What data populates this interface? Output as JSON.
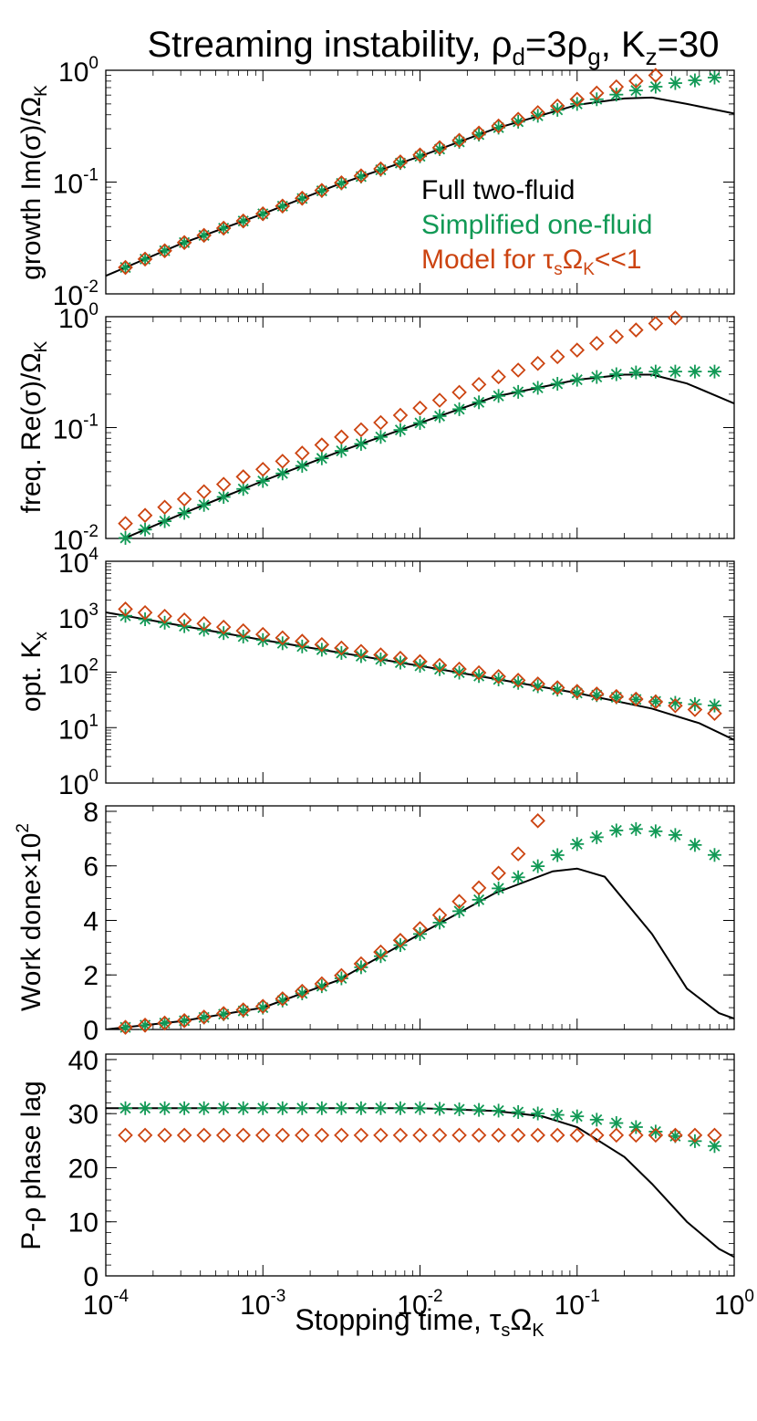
{
  "figure": {
    "title": "Streaming instability, ρd=3ρg, Kz=30",
    "title_parts": {
      "main": "Streaming instability, ",
      "rho": "ρ",
      "d_sub": "d",
      "eq3": "=3",
      "g_sub": "g",
      "kz": ", K",
      "z_sub": "z",
      "eq30": "=30"
    },
    "xlabel": "Stopping time, τsΩK",
    "xlabel_parts": {
      "main": "Stopping time, ",
      "tau": "τ",
      "s_sub": "s",
      "omega": "Ω",
      "k_sub": "K"
    },
    "x_ticks": [
      {
        "base": "10",
        "exp": "-4"
      },
      {
        "base": "10",
        "exp": "-3"
      },
      {
        "base": "10",
        "exp": "-2"
      },
      {
        "base": "10",
        "exp": "-1"
      },
      {
        "base": "10",
        "exp": "0"
      },
      {
        "base": "10",
        "exp": ""
      }
    ],
    "legend": {
      "placement": "inside top panel, lower right",
      "items": [
        {
          "label": "Full two-fluid",
          "color": "#000000"
        },
        {
          "label": "Simplified one-fluid",
          "color": "#119955"
        },
        {
          "label": "Model for τsΩK<<1",
          "color": "#cc4411",
          "parts": {
            "a": "Model for ",
            "tau": "τ",
            "s": "s",
            "om": "Ω",
            "k": "K",
            "b": "<<1"
          }
        }
      ]
    },
    "colors": {
      "full": "#000000",
      "simplified": "#119955",
      "model": "#cc4411"
    }
  },
  "chart_data": [
    {
      "type": "line",
      "ylabel": "growth Im(σ)/ΩK",
      "ylabel_parts": {
        "main": "growth Im(σ)/Ω",
        "sub": "K"
      },
      "xscale": "log",
      "yscale": "log",
      "xlim": [
        0.0001,
        1
      ],
      "ylim": [
        0.01,
        1
      ],
      "y_ticks": [
        {
          "base": "10",
          "exp": "0"
        },
        {
          "base": "10",
          "exp": "-1"
        },
        {
          "base": "10",
          "exp": "-2"
        }
      ],
      "series": [
        {
          "name": "Full two-fluid",
          "style": "line",
          "points": [
            [
              0.0001,
              0.0145
            ],
            [
              0.0003,
              0.028
            ],
            [
              0.001,
              0.052
            ],
            [
              0.003,
              0.095
            ],
            [
              0.01,
              0.17
            ],
            [
              0.03,
              0.3
            ],
            [
              0.1,
              0.49
            ],
            [
              0.2,
              0.56
            ],
            [
              0.3,
              0.57
            ],
            [
              0.5,
              0.5
            ],
            [
              1.0,
              0.41
            ]
          ]
        },
        {
          "name": "Simplified one-fluid",
          "style": "asterisk",
          "points": [
            [
              0.0001,
              0.0145
            ],
            [
              0.0003,
              0.028
            ],
            [
              0.001,
              0.052
            ],
            [
              0.003,
              0.095
            ],
            [
              0.01,
              0.17
            ],
            [
              0.03,
              0.3
            ],
            [
              0.1,
              0.5
            ],
            [
              0.2,
              0.63
            ],
            [
              0.4,
              0.76
            ],
            [
              0.75,
              0.86
            ]
          ]
        },
        {
          "name": "Model for τsΩK<<1",
          "style": "diamond",
          "points": [
            [
              0.0001,
              0.0145
            ],
            [
              0.0003,
              0.028
            ],
            [
              0.001,
              0.052
            ],
            [
              0.003,
              0.096
            ],
            [
              0.01,
              0.175
            ],
            [
              0.03,
              0.31
            ],
            [
              0.1,
              0.55
            ],
            [
              0.2,
              0.75
            ],
            [
              0.3,
              0.88
            ],
            [
              0.4,
              1.0
            ]
          ]
        }
      ]
    },
    {
      "type": "line",
      "ylabel": "freq. Re(σ)/ΩK",
      "ylabel_parts": {
        "main": "freq. Re(σ)/Ω",
        "sub": "K"
      },
      "xscale": "log",
      "yscale": "log",
      "xlim": [
        0.0001,
        1
      ],
      "ylim": [
        0.01,
        1
      ],
      "y_ticks": [
        {
          "base": "10",
          "exp": "0"
        },
        {
          "base": "10",
          "exp": "-1"
        },
        {
          "base": "10",
          "exp": "-2"
        }
      ],
      "series": [
        {
          "name": "Full two-fluid",
          "style": "line",
          "points": [
            [
              0.0001,
              0.0085
            ],
            [
              0.0003,
              0.0165
            ],
            [
              0.001,
              0.033
            ],
            [
              0.003,
              0.06
            ],
            [
              0.01,
              0.11
            ],
            [
              0.03,
              0.19
            ],
            [
              0.1,
              0.27
            ],
            [
              0.2,
              0.3
            ],
            [
              0.3,
              0.3
            ],
            [
              0.5,
              0.25
            ],
            [
              1.0,
              0.165
            ]
          ]
        },
        {
          "name": "Simplified one-fluid",
          "style": "asterisk",
          "points": [
            [
              0.0001,
              0.0085
            ],
            [
              0.0003,
              0.0165
            ],
            [
              0.001,
              0.033
            ],
            [
              0.003,
              0.06
            ],
            [
              0.01,
              0.11
            ],
            [
              0.03,
              0.19
            ],
            [
              0.1,
              0.27
            ],
            [
              0.2,
              0.31
            ],
            [
              0.3,
              0.32
            ],
            [
              0.75,
              0.32
            ]
          ]
        },
        {
          "name": "Model for τsΩK<<1",
          "style": "diamond",
          "points": [
            [
              0.0001,
              0.0115
            ],
            [
              0.0003,
              0.022
            ],
            [
              0.001,
              0.042
            ],
            [
              0.003,
              0.08
            ],
            [
              0.01,
              0.15
            ],
            [
              0.03,
              0.28
            ],
            [
              0.1,
              0.5
            ],
            [
              0.3,
              0.85
            ],
            [
              0.45,
              1.0
            ]
          ]
        }
      ]
    },
    {
      "type": "line",
      "ylabel": "opt. Kx",
      "ylabel_parts": {
        "main": "opt. K",
        "sub": "x"
      },
      "xscale": "log",
      "yscale": "log",
      "xlim": [
        0.0001,
        1
      ],
      "ylim": [
        1,
        10000
      ],
      "y_ticks": [
        {
          "base": "10",
          "exp": "4"
        },
        {
          "base": "10",
          "exp": "3"
        },
        {
          "base": "10",
          "exp": "2"
        },
        {
          "base": "10",
          "exp": "1"
        },
        {
          "base": "10",
          "exp": "0"
        }
      ],
      "series": [
        {
          "name": "Full two-fluid",
          "style": "line",
          "points": [
            [
              0.0001,
              1200
            ],
            [
              0.001,
              380
            ],
            [
              0.01,
              130
            ],
            [
              0.1,
              42
            ],
            [
              0.3,
              22
            ],
            [
              0.6,
              12
            ],
            [
              1.0,
              6
            ]
          ]
        },
        {
          "name": "Simplified one-fluid",
          "style": "asterisk",
          "points": [
            [
              0.0001,
              1200
            ],
            [
              0.001,
              380
            ],
            [
              0.01,
              130
            ],
            [
              0.1,
              42
            ],
            [
              0.3,
              30
            ],
            [
              0.75,
              25
            ]
          ]
        },
        {
          "name": "Model for τsΩK<<1",
          "style": "diamond",
          "points": [
            [
              0.0001,
              1600
            ],
            [
              0.001,
              480
            ],
            [
              0.01,
              155
            ],
            [
              0.1,
              45
            ],
            [
              0.3,
              30
            ],
            [
              0.75,
              18
            ]
          ]
        }
      ]
    },
    {
      "type": "line",
      "ylabel": "Work done×10²",
      "ylabel_parts": {
        "main": "Work done×10",
        "sup": "2"
      },
      "xscale": "log",
      "yscale": "linear",
      "xlim": [
        0.0001,
        1
      ],
      "ylim": [
        0,
        8.2
      ],
      "y_ticks": [
        {
          "base": "8",
          "exp": ""
        },
        {
          "base": "6",
          "exp": ""
        },
        {
          "base": "4",
          "exp": ""
        },
        {
          "base": "2",
          "exp": ""
        },
        {
          "base": "0",
          "exp": ""
        }
      ],
      "y_tick_values": [
        8,
        6,
        4,
        2,
        0
      ],
      "series": [
        {
          "name": "Full two-fluid",
          "style": "line",
          "points": [
            [
              0.0001,
              0.0
            ],
            [
              0.0003,
              0.3
            ],
            [
              0.001,
              0.8
            ],
            [
              0.003,
              1.8
            ],
            [
              0.01,
              3.5
            ],
            [
              0.03,
              5.0
            ],
            [
              0.07,
              5.8
            ],
            [
              0.1,
              5.9
            ],
            [
              0.15,
              5.6
            ],
            [
              0.3,
              3.5
            ],
            [
              0.5,
              1.5
            ],
            [
              0.8,
              0.6
            ],
            [
              1.0,
              0.4
            ]
          ]
        },
        {
          "name": "Simplified one-fluid",
          "style": "asterisk",
          "points": [
            [
              0.0001,
              0.0
            ],
            [
              0.0003,
              0.3
            ],
            [
              0.001,
              0.8
            ],
            [
              0.003,
              1.8
            ],
            [
              0.01,
              3.5
            ],
            [
              0.03,
              5.1
            ],
            [
              0.1,
              6.8
            ],
            [
              0.2,
              7.4
            ],
            [
              0.4,
              7.2
            ],
            [
              0.75,
              6.4
            ]
          ]
        },
        {
          "name": "Model for τsΩK<<1",
          "style": "diamond",
          "points": [
            [
              0.0001,
              0.0
            ],
            [
              0.0003,
              0.3
            ],
            [
              0.001,
              0.85
            ],
            [
              0.003,
              1.9
            ],
            [
              0.01,
              3.7
            ],
            [
              0.03,
              5.6
            ],
            [
              0.045,
              6.6
            ],
            [
              0.058,
              7.8
            ]
          ]
        }
      ]
    },
    {
      "type": "line",
      "ylabel": "P-ρ phase lag",
      "ylabel_parts": {
        "main": "P-ρ phase lag"
      },
      "xscale": "log",
      "yscale": "linear",
      "xlim": [
        0.0001,
        1
      ],
      "ylim": [
        0,
        41
      ],
      "y_ticks": [
        {
          "base": "40",
          "exp": ""
        },
        {
          "base": "30",
          "exp": ""
        },
        {
          "base": "20",
          "exp": ""
        },
        {
          "base": "10",
          "exp": ""
        },
        {
          "base": "0",
          "exp": ""
        }
      ],
      "y_tick_values": [
        40,
        30,
        20,
        10,
        0
      ],
      "series": [
        {
          "name": "Full two-fluid",
          "style": "line",
          "points": [
            [
              0.0001,
              31
            ],
            [
              0.01,
              31
            ],
            [
              0.03,
              30.5
            ],
            [
              0.06,
              29.5
            ],
            [
              0.1,
              27.5
            ],
            [
              0.2,
              22
            ],
            [
              0.3,
              17
            ],
            [
              0.5,
              10
            ],
            [
              0.8,
              5
            ],
            [
              1.0,
              3.5
            ]
          ]
        },
        {
          "name": "Simplified one-fluid",
          "style": "asterisk",
          "points": [
            [
              0.0001,
              31
            ],
            [
              0.01,
              31
            ],
            [
              0.03,
              30.6
            ],
            [
              0.1,
              29.5
            ],
            [
              0.2,
              28
            ],
            [
              0.4,
              26
            ],
            [
              0.75,
              24
            ]
          ]
        },
        {
          "name": "Model for τsΩK<<1",
          "style": "diamond",
          "points": [
            [
              0.0001,
              26
            ],
            [
              0.01,
              26
            ],
            [
              0.1,
              26
            ],
            [
              0.75,
              26
            ]
          ]
        }
      ]
    }
  ]
}
